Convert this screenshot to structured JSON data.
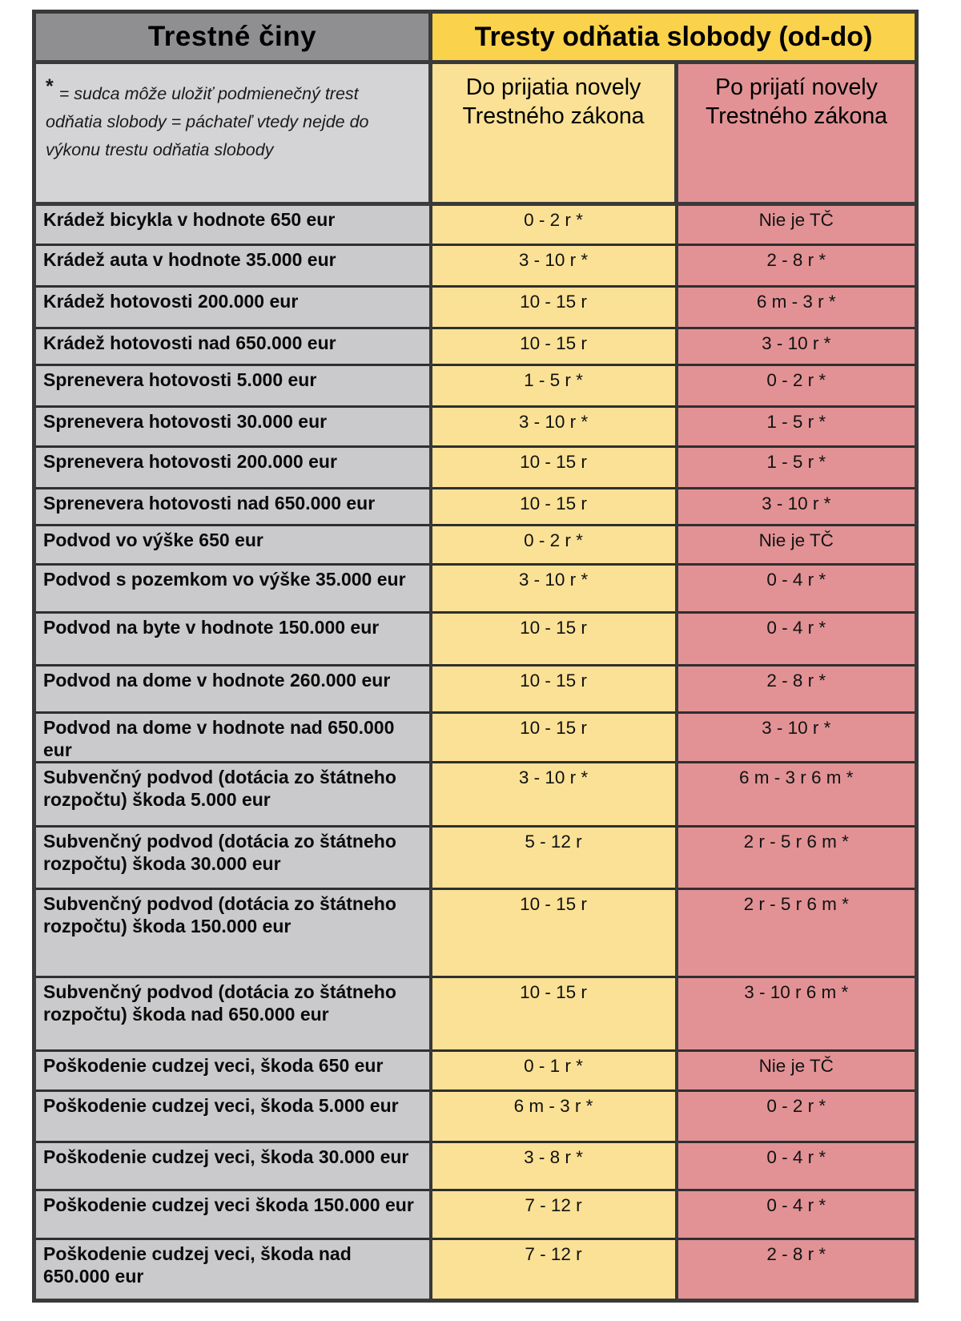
{
  "table": {
    "header": {
      "col_crimes": "Trestné činy",
      "col_sentences": "Tresty odňatia slobody (od-do)"
    },
    "subheader": {
      "note_symbol": "*",
      "note": "= sudca môže uložiť  podmienečný trest odňatia slobody = páchateľ vtedy nejde do výkonu trestu odňatia slobody",
      "col_before": "Do prijatia novely Trestného zákona",
      "col_after": "Po prijatí novely Trestného zákona"
    },
    "rows": [
      {
        "crime": "Krádež bicykla v hodnote 650 eur",
        "before": "0 - 2 r *",
        "after": "Nie je TČ"
      },
      {
        "crime": "Krádež auta v hodnote 35.000 eur",
        "before": "3 - 10 r *",
        "after": "2 - 8 r *"
      },
      {
        "crime": "Krádež hotovosti 200.000 eur",
        "before": "10 - 15 r",
        "after": "6 m - 3 r *"
      },
      {
        "crime": "Krádež hotovosti nad 650.000 eur",
        "before": "10 - 15 r",
        "after": "3 - 10 r *"
      },
      {
        "crime": "Sprenevera hotovosti 5.000 eur",
        "before": "1 - 5 r *",
        "after": "0 - 2 r *"
      },
      {
        "crime": "Sprenevera hotovosti 30.000 eur",
        "before": "3 - 10 r *",
        "after": "1 - 5 r *"
      },
      {
        "crime": "Sprenevera hotovosti 200.000 eur",
        "before": "10 - 15 r",
        "after": "1 - 5 r *"
      },
      {
        "crime": "Sprenevera hotovosti nad 650.000 eur",
        "before": "10 - 15 r",
        "after": "3 - 10 r *"
      },
      {
        "crime": "Podvod vo výške 650 eur",
        "before": "0 - 2 r *",
        "after": "Nie je TČ"
      },
      {
        "crime": "Podvod s pozemkom vo výške 35.000 eur",
        "before": "3 - 10 r *",
        "after": "0 - 4 r *"
      },
      {
        "crime": "Podvod na byte v hodnote 150.000 eur",
        "before": "10 - 15 r",
        "after": "0 - 4 r *"
      },
      {
        "crime": "Podvod na dome v hodnote 260.000 eur",
        "before": "10 - 15 r",
        "after": "2 - 8 r *"
      },
      {
        "crime": "Podvod na dome v hodnote nad 650.000 eur",
        "before": "10 - 15 r",
        "after": "3 - 10 r *"
      },
      {
        "crime": "Subvenčný podvod (dotácia zo štátneho rozpočtu)  škoda 5.000 eur",
        "before": "3 - 10 r *",
        "after": "6 m - 3 r 6 m *"
      },
      {
        "crime": "Subvenčný podvod (dotácia zo štátneho rozpočtu)  škoda 30.000 eur",
        "before": "5 - 12 r",
        "after": "2 r - 5 r 6 m *"
      },
      {
        "crime": "Subvenčný podvod (dotácia zo štátneho rozpočtu) škoda 150.000 eur",
        "before": "10 - 15 r",
        "after": "2 r - 5 r 6 m *"
      },
      {
        "crime": "Subvenčný podvod (dotácia zo štátneho rozpočtu) škoda nad 650.000 eur",
        "before": "10 - 15 r",
        "after": "3 - 10 r 6 m *"
      },
      {
        "crime": "Poškodenie cudzej veci, škoda 650 eur",
        "before": "0 - 1 r *",
        "after": "Nie je TČ"
      },
      {
        "crime": "Poškodenie cudzej veci, škoda 5.000 eur",
        "before": "6 m - 3 r *",
        "after": "0 - 2 r *"
      },
      {
        "crime": "Poškodenie cudzej veci, škoda 30.000 eur",
        "before": "3 - 8 r *",
        "after": "0 - 4 r *"
      },
      {
        "crime": "Poškodenie cudzej veci škoda 150.000 eur",
        "before": "7 - 12 r",
        "after": "0 - 4 r *"
      },
      {
        "crime": "Poškodenie cudzej veci, škoda nad 650.000 eur",
        "before": "7 - 12 r",
        "after": "2 - 8 r *"
      }
    ],
    "colors": {
      "header_gray": "#8f8f91",
      "note_gray": "#d4d4d6",
      "crime_gray": "#cacacc",
      "header_gold": "#fbd24b",
      "sentence_yellow": "#fae195",
      "sentence_pink": "#e29295",
      "border_dark": "#3a3a3a"
    }
  }
}
